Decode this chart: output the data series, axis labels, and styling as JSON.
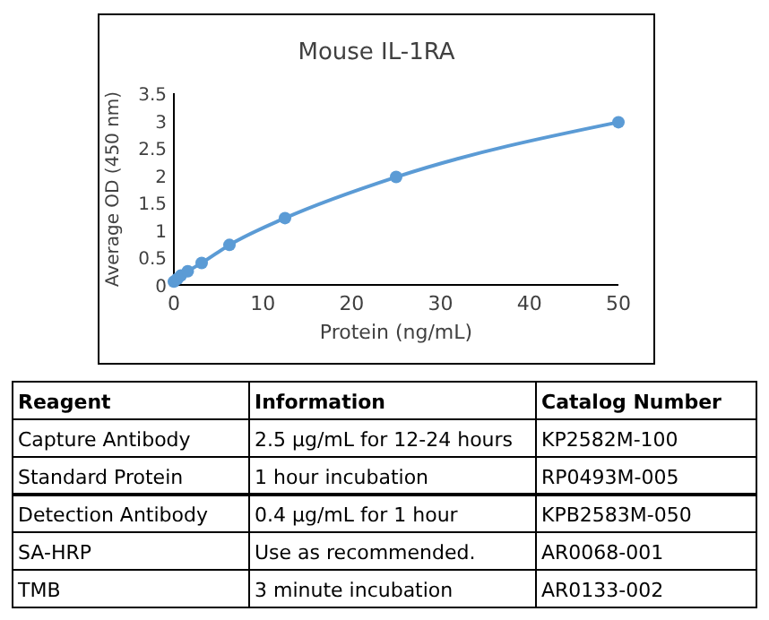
{
  "chart_data": [
    {
      "type": "line",
      "title": "Mouse IL-1RA",
      "xlabel": "Protein (ng/mL)",
      "ylabel": "Average OD (450 nm)",
      "x": [
        0,
        0.39,
        0.78,
        1.56,
        3.125,
        6.25,
        12.5,
        25,
        50
      ],
      "series": [
        {
          "color": "#5b9bd5",
          "values": [
            0.06,
            0.11,
            0.17,
            0.25,
            0.4,
            0.73,
            1.22,
            1.97,
            2.97
          ]
        }
      ],
      "xlim": [
        0,
        50
      ],
      "xticks": [
        0,
        10,
        20,
        30,
        40,
        50
      ],
      "ylim": [
        0,
        3.5
      ],
      "yticks": [
        0,
        0.5,
        1,
        1.5,
        2,
        2.5,
        3,
        3.5
      ],
      "marker": "circle",
      "grid": false
    },
    {
      "type": "other",
      "annotations": [
        "Reagent",
        "Information",
        "Catalog Number",
        "Capture Antibody",
        "2.5 μg/mL for 12-24 hours",
        "KP2582M-100",
        "Standard Protein",
        "1 hour incubation",
        "RP0493M-005",
        "Detection Antibody",
        "0.4 μg/mL for 1 hour",
        "KPB2583M-050",
        "SA-HRP",
        "Use as recommended.",
        "AR0068-001",
        "TMB",
        "3 minute incubation",
        "AR0133-002"
      ]
    }
  ]
}
